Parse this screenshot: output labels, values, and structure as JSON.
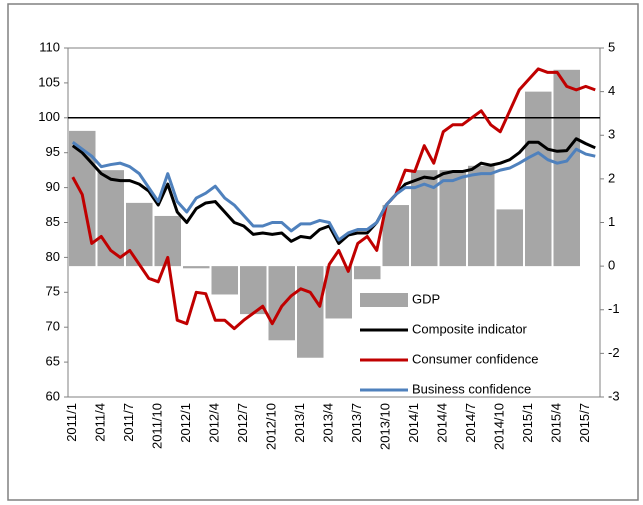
{
  "chart_data": {
    "type": "combo",
    "categories": [
      "2011/1",
      null,
      null,
      "2011/4",
      null,
      null,
      "2011/7",
      null,
      null,
      "2011/10",
      null,
      null,
      "2012/1",
      null,
      null,
      "2012/4",
      null,
      null,
      "2012/7",
      null,
      null,
      "2012/10",
      null,
      null,
      "2013/1",
      null,
      null,
      "2013/4",
      null,
      null,
      "2013/7",
      null,
      null,
      "2013/10",
      null,
      null,
      "2014/1",
      null,
      null,
      "2014/4",
      null,
      null,
      "2014/7",
      null,
      null,
      "2014/10",
      null,
      null,
      "2015/1",
      null,
      null,
      "2015/4",
      null,
      null,
      "2015/7",
      null
    ],
    "ylim": [
      60,
      110
    ],
    "yticks": [
      60,
      65,
      70,
      75,
      80,
      85,
      90,
      95,
      100,
      105,
      110
    ],
    "y2lim": [
      -3,
      5
    ],
    "y2ticks": [
      -3,
      -2,
      -1,
      0,
      1,
      2,
      3,
      4,
      5
    ],
    "reference_line": 100,
    "series": [
      {
        "name": "GDP",
        "kind": "bar",
        "axis": "y2",
        "color": "#a6a6a6",
        "values": [
          3.1,
          null,
          null,
          2.2,
          null,
          null,
          1.45,
          null,
          null,
          1.15,
          null,
          null,
          -0.05,
          null,
          null,
          -0.65,
          null,
          null,
          -1.1,
          null,
          null,
          -1.7,
          null,
          null,
          -2.1,
          null,
          null,
          -1.2,
          null,
          null,
          -0.3,
          null,
          null,
          1.4,
          null,
          null,
          2.2,
          null,
          null,
          2.2,
          null,
          null,
          2.3,
          null,
          null,
          1.3,
          null,
          null,
          4.0,
          null,
          null,
          4.5,
          null,
          null,
          null,
          null
        ]
      },
      {
        "name": "Composite indicator",
        "kind": "line",
        "color": "#000000",
        "values": [
          96,
          95,
          93.5,
          92,
          91.2,
          91,
          91,
          90.5,
          89.5,
          87.5,
          90.5,
          86.5,
          85,
          87,
          87.8,
          88,
          86.5,
          85,
          84.5,
          83.3,
          83.5,
          83.3,
          83.5,
          82.3,
          83,
          82.8,
          84,
          84.5,
          82,
          83.2,
          83.5,
          83.5,
          85,
          87.5,
          89,
          90.5,
          91,
          91.5,
          91.3,
          92,
          92.3,
          92.3,
          92.6,
          93.5,
          93.2,
          93.5,
          94,
          95,
          96.5,
          96.5,
          95.5,
          95.2,
          95.3,
          97,
          96.3,
          95.7
        ]
      },
      {
        "name": "Consumer confidence",
        "kind": "line",
        "color": "#c00000",
        "values": [
          91.5,
          89,
          82,
          83,
          81,
          80,
          81,
          79,
          77,
          76.5,
          80,
          71,
          70.5,
          75,
          74.8,
          71,
          71,
          69.8,
          71,
          72,
          73,
          70.5,
          73,
          74.5,
          75.5,
          75,
          73,
          79,
          81,
          78,
          82,
          83,
          81,
          87.5,
          89,
          92.5,
          92.3,
          96,
          93.5,
          98,
          99,
          99,
          100,
          101,
          99,
          98,
          101,
          104,
          105.5,
          107,
          106.5,
          106.5,
          104.5,
          104,
          104.5,
          104
        ]
      },
      {
        "name": "Business confidence",
        "kind": "line",
        "color": "#4f81bd",
        "values": [
          96.5,
          95.5,
          94.5,
          93,
          93.3,
          93.5,
          93,
          92,
          90,
          88,
          92,
          88,
          86.5,
          88.5,
          89.2,
          90.2,
          88.5,
          87.5,
          86,
          84.5,
          84.5,
          85,
          85,
          83.8,
          84.8,
          84.8,
          85.3,
          85,
          82.5,
          83.5,
          84,
          84,
          85,
          87.5,
          89,
          90,
          90,
          90.5,
          90,
          91,
          91,
          91.5,
          91.8,
          92,
          92,
          92.5,
          92.8,
          93.5,
          94.3,
          95,
          94,
          93.5,
          93.8,
          95.5,
          94.8,
          94.5
        ]
      }
    ]
  }
}
